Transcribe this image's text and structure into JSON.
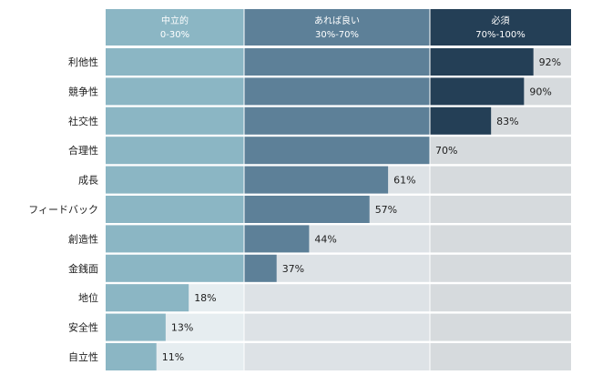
{
  "chart_data": {
    "type": "bar",
    "orientation": "horizontal",
    "xlim": [
      0,
      100
    ],
    "categories": [
      "利他性",
      "競争性",
      "社交性",
      "合理性",
      "成長",
      "フィードバック",
      "創造性",
      "金銭面",
      "地位",
      "安全性",
      "自立性"
    ],
    "values": [
      92,
      90,
      83,
      70,
      61,
      57,
      44,
      37,
      18,
      13,
      11
    ],
    "value_labels": [
      "92%",
      "90%",
      "83%",
      "70%",
      "61%",
      "57%",
      "44%",
      "37%",
      "18%",
      "13%",
      "11%"
    ],
    "zones": [
      {
        "title": "中立的",
        "range_label": "0-30%",
        "from": 0,
        "to": 30
      },
      {
        "title": "あれば良い",
        "range_label": "30%-70%",
        "from": 30,
        "to": 70
      },
      {
        "title": "必須",
        "range_label": "70%-100%",
        "from": 70,
        "to": 100
      }
    ],
    "grid": false
  },
  "colors": {
    "zone_fill": [
      "#8bb6c4",
      "#5d8098",
      "#243f56"
    ],
    "zone_track": [
      "#e6edf0",
      "#dde2e6",
      "#d6dadd"
    ],
    "label_text": "#1c1c1c"
  }
}
